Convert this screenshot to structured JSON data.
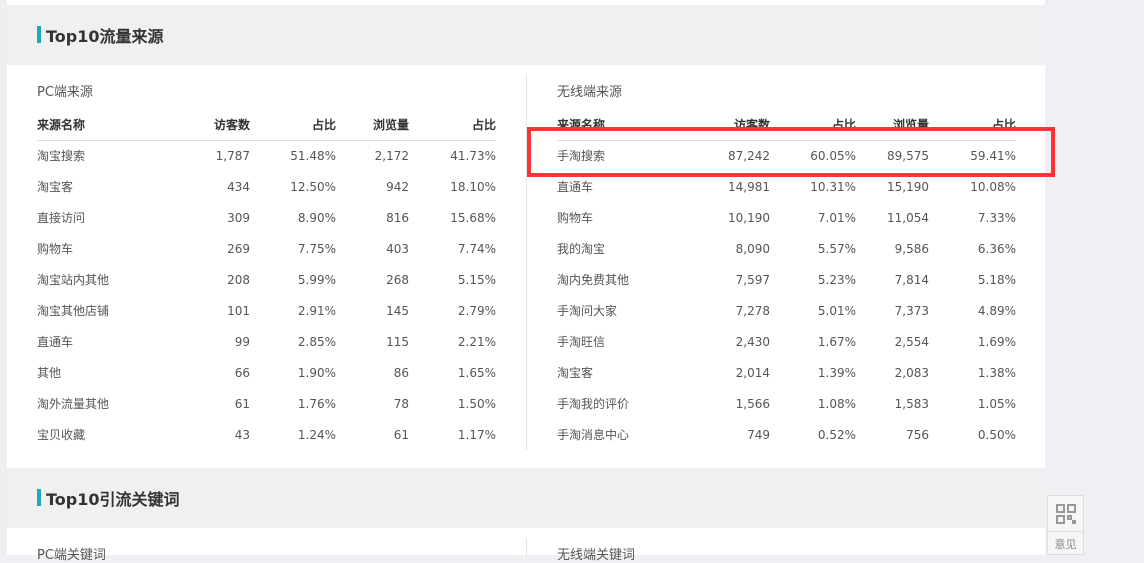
{
  "section1": {
    "title": "Top10流量来源"
  },
  "section2": {
    "title": "Top10引流关键词",
    "pc_label": "PC端关键词",
    "wireless_label": "无线端关键词"
  },
  "pc": {
    "label": "PC端来源",
    "headers": [
      "来源名称",
      "访客数",
      "占比",
      "浏览量",
      "占比"
    ],
    "rows": [
      [
        "淘宝搜索",
        "1,787",
        "51.48%",
        "2,172",
        "41.73%"
      ],
      [
        "淘宝客",
        "434",
        "12.50%",
        "942",
        "18.10%"
      ],
      [
        "直接访问",
        "309",
        "8.90%",
        "816",
        "15.68%"
      ],
      [
        "购物车",
        "269",
        "7.75%",
        "403",
        "7.74%"
      ],
      [
        "淘宝站内其他",
        "208",
        "5.99%",
        "268",
        "5.15%"
      ],
      [
        "淘宝其他店铺",
        "101",
        "2.91%",
        "145",
        "2.79%"
      ],
      [
        "直通车",
        "99",
        "2.85%",
        "115",
        "2.21%"
      ],
      [
        "其他",
        "66",
        "1.90%",
        "86",
        "1.65%"
      ],
      [
        "淘外流量其他",
        "61",
        "1.76%",
        "78",
        "1.50%"
      ],
      [
        "宝贝收藏",
        "43",
        "1.24%",
        "61",
        "1.17%"
      ]
    ]
  },
  "wireless": {
    "label": "无线端来源",
    "headers": [
      "来源名称",
      "访客数",
      "占比",
      "浏览量",
      "占比"
    ],
    "rows": [
      [
        "手淘搜索",
        "87,242",
        "60.05%",
        "89,575",
        "59.41%"
      ],
      [
        "直通车",
        "14,981",
        "10.31%",
        "15,190",
        "10.08%"
      ],
      [
        "购物车",
        "10,190",
        "7.01%",
        "11,054",
        "7.33%"
      ],
      [
        "我的淘宝",
        "8,090",
        "5.57%",
        "9,586",
        "6.36%"
      ],
      [
        "淘内免费其他",
        "7,597",
        "5.23%",
        "7,814",
        "5.18%"
      ],
      [
        "手淘问大家",
        "7,278",
        "5.01%",
        "7,373",
        "4.89%"
      ],
      [
        "手淘旺信",
        "2,430",
        "1.67%",
        "2,554",
        "1.69%"
      ],
      [
        "淘宝客",
        "2,014",
        "1.39%",
        "2,083",
        "1.38%"
      ],
      [
        "手淘我的评价",
        "1,566",
        "1.08%",
        "1,583",
        "1.05%"
      ],
      [
        "手淘消息中心",
        "749",
        "0.52%",
        "756",
        "0.50%"
      ]
    ]
  },
  "feedback": {
    "icon": "qr-code-icon",
    "label": "意见"
  },
  "colors": {
    "accent": "#1fa9bb",
    "highlight": "#ff3333"
  }
}
